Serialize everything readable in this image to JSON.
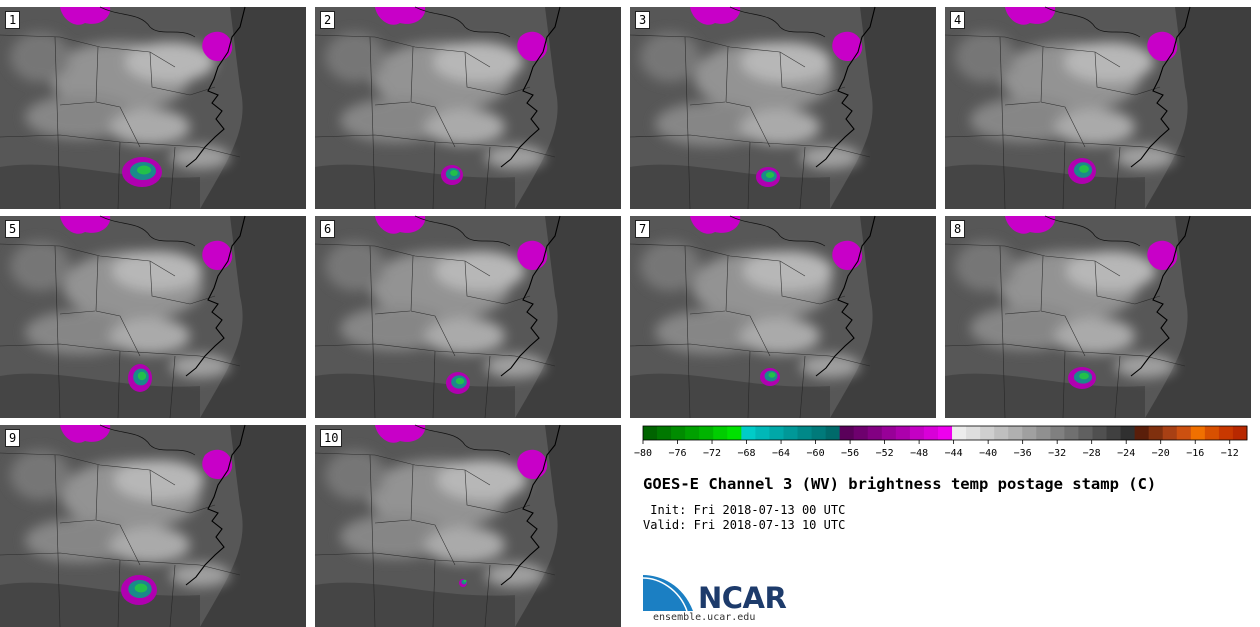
{
  "panels": [
    "1",
    "2",
    "3",
    "4",
    "5",
    "6",
    "7",
    "8",
    "9",
    "10"
  ],
  "colorbar": {
    "min": -80,
    "max": -10,
    "step": 2,
    "tick_labels": [
      "−80",
      "−76",
      "−72",
      "−68",
      "−64",
      "−60",
      "−56",
      "−52",
      "−48",
      "−44",
      "−40",
      "−36",
      "−32",
      "−28",
      "−24",
      "−20",
      "−16",
      "−12"
    ],
    "colors": [
      "#006400",
      "#007800",
      "#008c00",
      "#00a000",
      "#00b400",
      "#00cd00",
      "#00e100",
      "#00ccc8",
      "#00b8b8",
      "#00a8a8",
      "#009898",
      "#008888",
      "#007a7a",
      "#006a6a",
      "#5a005a",
      "#6e006e",
      "#820082",
      "#980098",
      "#ac00ac",
      "#c400c4",
      "#d800d8",
      "#ee00ee",
      "#ececec",
      "#dedede",
      "#cfcfcf",
      "#bfbfbf",
      "#b0b0b0",
      "#a0a0a0",
      "#909090",
      "#808080",
      "#707070",
      "#606060",
      "#505050",
      "#404040",
      "#303030",
      "#5a1e0a",
      "#80300e",
      "#a84014",
      "#cc5010",
      "#f07000",
      "#d85000",
      "#c83800",
      "#b82800"
    ]
  },
  "title": "GOES-E Channel 3 (WV) brightness temp postage stamp (C)",
  "init": " Init: Fri 2018-07-13 00 UTC",
  "valid": "Valid: Fri 2018-07-13 10 UTC",
  "logo_text": "NCAR",
  "site": "ensemble.ucar.edu"
}
